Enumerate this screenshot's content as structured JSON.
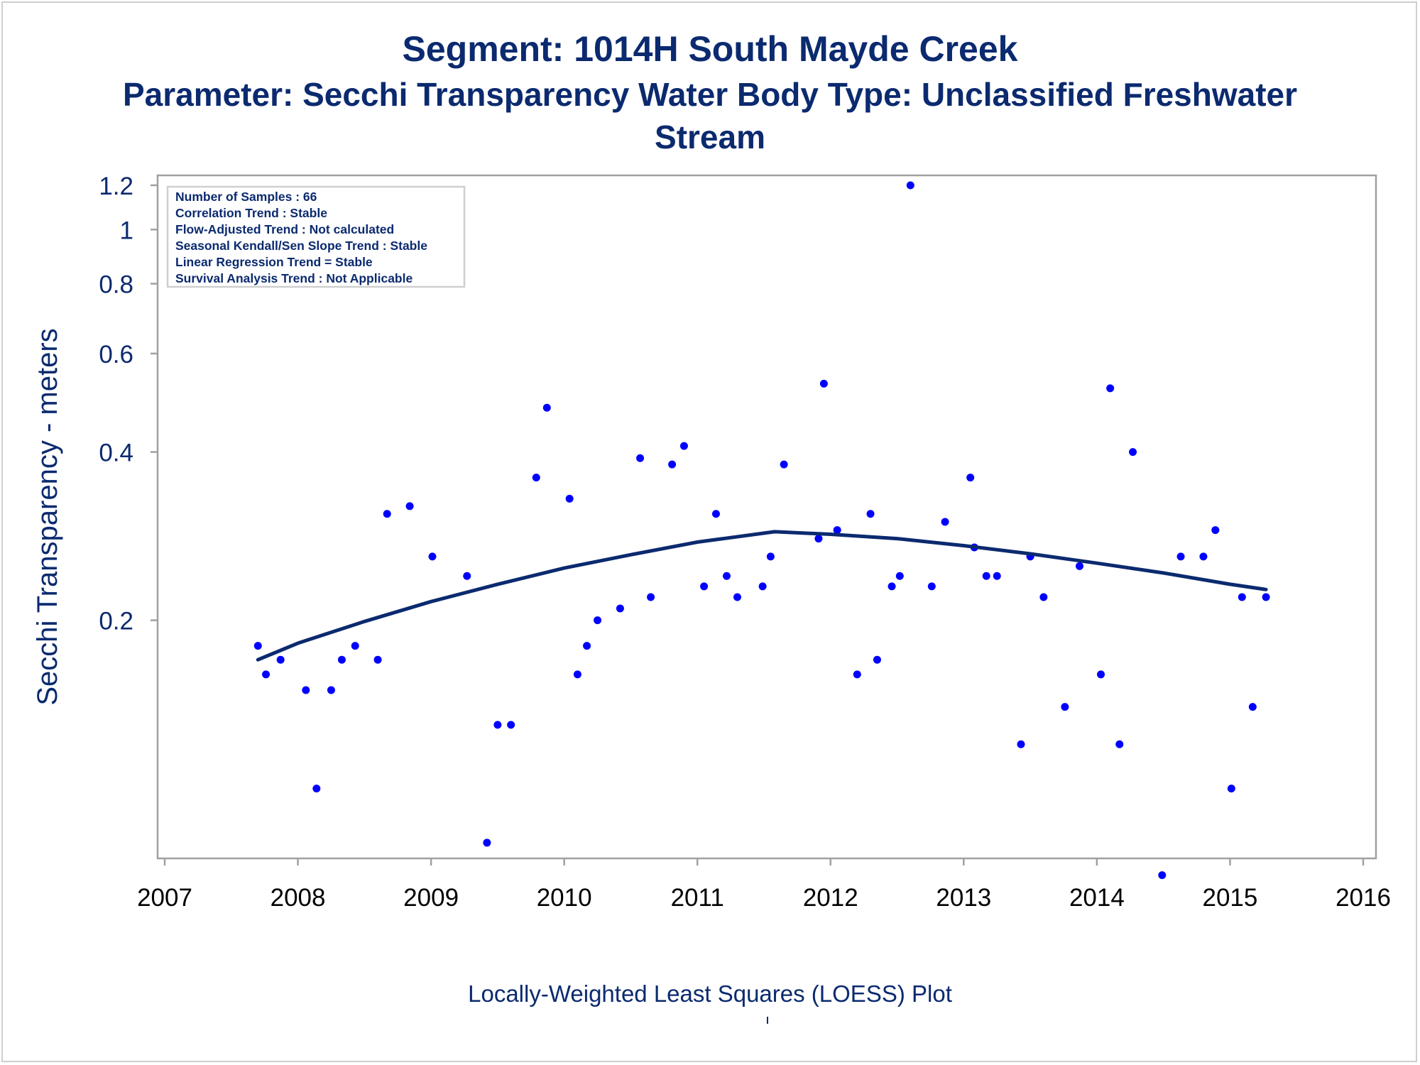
{
  "chart_data": {
    "type": "scatter",
    "title": "Segment: 1014H  South Mayde Creek",
    "subtitle_line1": "Parameter: Secchi Transparency   Water Body Type: Unclassified Freshwater",
    "subtitle_line2": "Stream",
    "xlabel": "",
    "ylabel": "Secchi Transparency - meters",
    "footnote": "Locally-Weighted Least Squares (LOESS) Plot",
    "x_unit": "year",
    "y_scale": "log",
    "xlim": [
      2007,
      2016
    ],
    "ylim": [
      0.075,
      1.25
    ],
    "x_ticks": [
      2007,
      2008,
      2009,
      2010,
      2011,
      2012,
      2013,
      2014,
      2015,
      2016
    ],
    "y_ticks": [
      0.2,
      0.4,
      0.6,
      0.8,
      1,
      1.2
    ],
    "y_tick_labels": [
      "0.2",
      "0.4",
      "0.6",
      "0.8",
      "1",
      "1.2"
    ],
    "grid": false,
    "colors": {
      "points": "#0000ff",
      "loess_line": "#0b2a6f",
      "text": "#0b2a6f",
      "frame": "#a0a0a0"
    },
    "info_box": [
      "Number of Samples : 66",
      "Correlation Trend : Stable",
      "Flow-Adjusted Trend : Not calculated",
      "Seasonal Kendall/Sen Slope Trend : Stable",
      "Linear Regression Trend = Stable",
      "Survival Analysis Trend : Not Applicable"
    ],
    "info_box_placement": "top-left",
    "series": [
      {
        "type": "scatter",
        "points": [
          [
            2007.7,
            0.18
          ],
          [
            2007.76,
            0.16
          ],
          [
            2007.87,
            0.17
          ],
          [
            2008.06,
            0.15
          ],
          [
            2008.14,
            0.1
          ],
          [
            2008.25,
            0.15
          ],
          [
            2008.33,
            0.17
          ],
          [
            2008.43,
            0.18
          ],
          [
            2008.6,
            0.17
          ],
          [
            2008.67,
            0.31
          ],
          [
            2008.84,
            0.32
          ],
          [
            2009.01,
            0.26
          ],
          [
            2009.27,
            0.24
          ],
          [
            2009.42,
            0.08
          ],
          [
            2009.5,
            0.13
          ],
          [
            2009.6,
            0.13
          ],
          [
            2009.79,
            0.36
          ],
          [
            2009.87,
            0.48
          ],
          [
            2010.04,
            0.33
          ],
          [
            2010.1,
            0.16
          ],
          [
            2010.17,
            0.18
          ],
          [
            2010.25,
            0.2
          ],
          [
            2010.42,
            0.21
          ],
          [
            2010.57,
            0.39
          ],
          [
            2010.65,
            0.22
          ],
          [
            2010.81,
            0.38
          ],
          [
            2010.9,
            0.41
          ],
          [
            2011.05,
            0.23
          ],
          [
            2011.14,
            0.31
          ],
          [
            2011.22,
            0.24
          ],
          [
            2011.3,
            0.22
          ],
          [
            2011.49,
            0.23
          ],
          [
            2011.55,
            0.26
          ],
          [
            2011.65,
            0.38
          ],
          [
            2011.91,
            0.28
          ],
          [
            2011.95,
            0.53
          ],
          [
            2012.05,
            0.29
          ],
          [
            2012.2,
            0.16
          ],
          [
            2012.3,
            0.31
          ],
          [
            2012.35,
            0.17
          ],
          [
            2012.46,
            0.23
          ],
          [
            2012.52,
            0.24
          ],
          [
            2012.6,
            1.2
          ],
          [
            2012.76,
            0.23
          ],
          [
            2012.86,
            0.3
          ],
          [
            2013.05,
            0.36
          ],
          [
            2013.08,
            0.27
          ],
          [
            2013.17,
            0.24
          ],
          [
            2013.25,
            0.24
          ],
          [
            2013.43,
            0.12
          ],
          [
            2013.5,
            0.26
          ],
          [
            2013.6,
            0.22
          ],
          [
            2013.76,
            0.14
          ],
          [
            2013.87,
            0.25
          ],
          [
            2014.03,
            0.16
          ],
          [
            2014.1,
            0.52
          ],
          [
            2014.17,
            0.12
          ],
          [
            2014.27,
            0.4
          ],
          [
            2014.49,
            0.07
          ],
          [
            2014.63,
            0.26
          ],
          [
            2014.8,
            0.26
          ],
          [
            2014.89,
            0.29
          ],
          [
            2015.01,
            0.1
          ],
          [
            2015.09,
            0.22
          ],
          [
            2015.17,
            0.14
          ],
          [
            2015.27,
            0.22
          ]
        ]
      },
      {
        "type": "line",
        "x": [
          2007.7,
          2008.0,
          2008.5,
          2009.0,
          2009.5,
          2010.0,
          2010.5,
          2011.0,
          2011.58,
          2012.0,
          2012.5,
          2013.0,
          2013.5,
          2014.0,
          2014.5,
          2015.0,
          2015.27
        ],
        "y": [
          0.17,
          0.182,
          0.199,
          0.216,
          0.232,
          0.248,
          0.262,
          0.276,
          0.288,
          0.285,
          0.28,
          0.272,
          0.263,
          0.253,
          0.243,
          0.232,
          0.227
        ]
      }
    ]
  }
}
